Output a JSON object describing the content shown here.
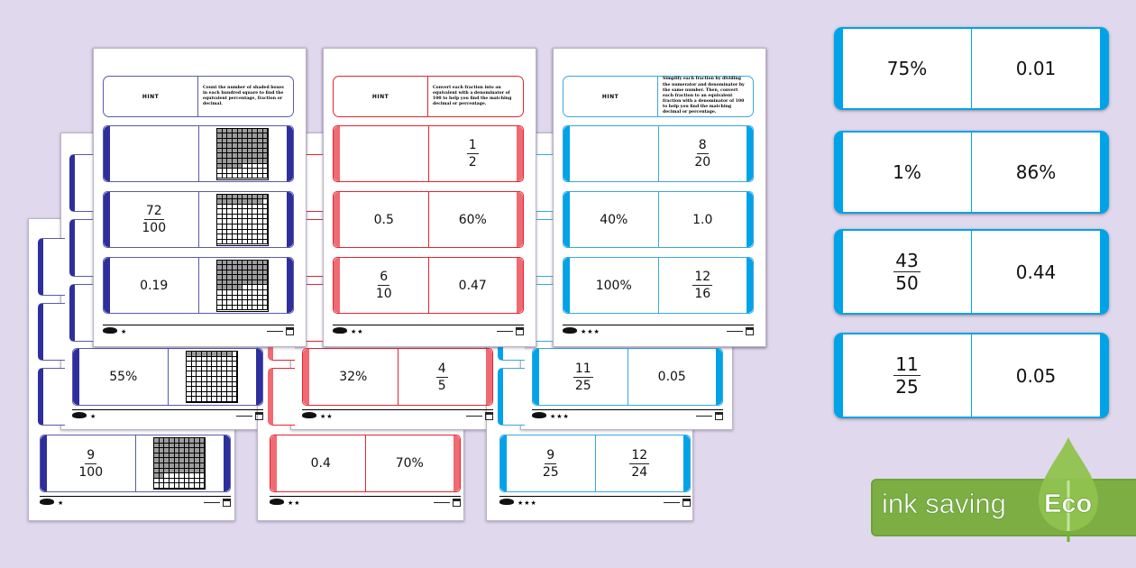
{
  "colors": {
    "background": "#e0d8ec",
    "navy": "#2e2f9c",
    "red": "#e8232f",
    "blue": "#00a3e8",
    "eco_green": "#7cae44"
  },
  "sheets": {
    "navy": {
      "stars": "★",
      "hint_label": "HINT",
      "hint_text": "Count the number of shaded boxes in each hundred square to find the equivalent percentage, fraction or decimal.",
      "cards": [
        {
          "left": {
            "type": "blank"
          },
          "right": {
            "type": "grid",
            "shaded": 75
          }
        },
        {
          "left": {
            "type": "fraction",
            "num": "72",
            "den": "100"
          },
          "right": {
            "type": "grid",
            "shaded": 19
          }
        },
        {
          "left": {
            "type": "text",
            "value": "0.19"
          },
          "right": {
            "type": "grid",
            "shaded": 55
          }
        }
      ],
      "back_cards": [
        {
          "left": {
            "type": "text",
            "value": "55%"
          },
          "right": {
            "type": "grid",
            "shaded": 9
          }
        },
        {
          "left": {
            "type": "fraction",
            "num": "9",
            "den": "100"
          },
          "right": {
            "type": "grid",
            "shaded": 72
          }
        }
      ]
    },
    "red": {
      "stars": "★★",
      "hint_label": "HINT",
      "hint_text": "Convert each fraction into an equivalent with a denominator of 100 to help you find the matching decimal or percentage.",
      "cards": [
        {
          "left": {
            "type": "blank"
          },
          "right": {
            "type": "fraction",
            "num": "1",
            "den": "2"
          }
        },
        {
          "left": {
            "type": "text",
            "value": "0.5"
          },
          "right": {
            "type": "text",
            "value": "60%"
          }
        },
        {
          "left": {
            "type": "fraction",
            "num": "6",
            "den": "10"
          },
          "right": {
            "type": "text",
            "value": "0.47"
          }
        }
      ],
      "back_cards": [
        {
          "left": {
            "type": "text",
            "value": "32%"
          },
          "right": {
            "type": "fraction",
            "num": "4",
            "den": "5"
          }
        },
        {
          "left": {
            "type": "text",
            "value": "0.4"
          },
          "right": {
            "type": "text",
            "value": "70%"
          }
        }
      ]
    },
    "blue": {
      "stars": "★★★",
      "hint_label": "HINT",
      "hint_text": "Simplify each fraction by dividing the numerator and denominator by the same number. Then, convert each fraction to an equivalent fraction with a denominator of 100 to help you find the matching decimal or percentage.",
      "cards": [
        {
          "left": {
            "type": "blank"
          },
          "right": {
            "type": "fraction",
            "num": "8",
            "den": "20"
          }
        },
        {
          "left": {
            "type": "text",
            "value": "40%"
          },
          "right": {
            "type": "text",
            "value": "1.0"
          }
        },
        {
          "left": {
            "type": "text",
            "value": "100%"
          },
          "right": {
            "type": "fraction",
            "num": "12",
            "den": "16"
          }
        }
      ],
      "back_cards": [
        {
          "left": {
            "type": "fraction",
            "num": "11",
            "den": "25"
          },
          "right": {
            "type": "text",
            "value": "0.05"
          }
        },
        {
          "left": {
            "type": "fraction",
            "num": "9",
            "den": "25"
          },
          "right": {
            "type": "fraction",
            "num": "12",
            "den": "24"
          }
        }
      ]
    }
  },
  "big_cards": [
    {
      "left": {
        "type": "text",
        "value": "75%"
      },
      "right": {
        "type": "text",
        "value": "0.01"
      }
    },
    {
      "left": {
        "type": "text",
        "value": "1%"
      },
      "right": {
        "type": "text",
        "value": "86%"
      }
    },
    {
      "left": {
        "type": "fraction",
        "num": "43",
        "den": "50"
      },
      "right": {
        "type": "text",
        "value": "0.44"
      }
    },
    {
      "left": {
        "type": "fraction",
        "num": "11",
        "den": "25"
      },
      "right": {
        "type": "text",
        "value": "0.05"
      }
    }
  ],
  "eco_badge": {
    "text": "ink saving",
    "word": "Eco"
  }
}
